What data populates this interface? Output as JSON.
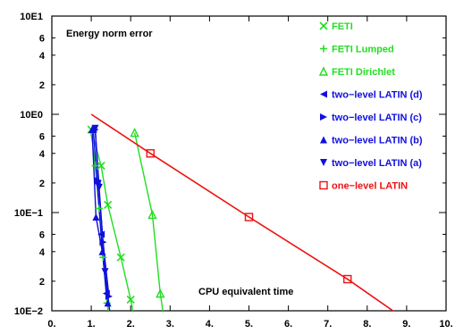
{
  "chart_data": {
    "type": "line",
    "title": "",
    "xlabel": "",
    "ylabel": "",
    "xlim": [
      0,
      10
    ],
    "ylim": [
      0.01,
      10
    ],
    "y_scale": "log",
    "grid": false,
    "legend_placement": "top-right",
    "x_ticks": [
      "0.",
      "1.",
      "2.",
      "3.",
      "4.",
      "5.",
      "6.",
      "7.",
      "8.",
      "9.",
      "10."
    ],
    "y_major_ticks": [
      {
        "value": 10,
        "label": "10E1"
      },
      {
        "value": 1,
        "label": "10E0"
      },
      {
        "value": 0.1,
        "label": "10E−1"
      },
      {
        "value": 0.01,
        "label": "10E−2"
      }
    ],
    "y_minor_ticks": [
      {
        "value": 6,
        "label": "6"
      },
      {
        "value": 4,
        "label": "4"
      },
      {
        "value": 2,
        "label": "2"
      },
      {
        "value": 0.6,
        "label": "6"
      },
      {
        "value": 0.4,
        "label": "4"
      },
      {
        "value": 0.2,
        "label": "2"
      },
      {
        "value": 0.06,
        "label": "6"
      },
      {
        "value": 0.04,
        "label": "4"
      },
      {
        "value": 0.02,
        "label": "2"
      }
    ],
    "annotations": [
      "Energy norm error",
      "CPU equivalent time"
    ],
    "series": [
      {
        "name": "FETI",
        "color": "#22dd22",
        "marker": "x",
        "x": [
          1.0,
          1.25,
          1.42,
          1.75,
          2.0,
          2.1
        ],
        "y": [
          0.7,
          0.3,
          0.12,
          0.035,
          0.013,
          0.008
        ]
      },
      {
        "name": "FETI Lumped",
        "color": "#22dd22",
        "marker": "plus",
        "x": [
          1.0,
          1.1,
          1.2,
          1.3,
          1.4,
          1.5
        ],
        "y": [
          0.65,
          0.3,
          0.11,
          0.035,
          0.012,
          0.007
        ]
      },
      {
        "name": "FETI Dirichlet",
        "color": "#22dd22",
        "marker": "triangle-up",
        "x": [
          2.1,
          2.55,
          2.75,
          2.85
        ],
        "y": [
          0.65,
          0.095,
          0.015,
          0.008
        ]
      },
      {
        "name": "two−level LATIN (d)",
        "color": "#1010dd",
        "marker": "triangle-left",
        "x": [
          1.05,
          1.15,
          1.25,
          1.38
        ],
        "y": [
          0.7,
          0.2,
          0.06,
          0.015
        ]
      },
      {
        "name": "two−level LATIN (c)",
        "color": "#1010dd",
        "marker": "triangle-right",
        "x": [
          1.1,
          1.18,
          1.3,
          1.45
        ],
        "y": [
          0.7,
          0.21,
          0.05,
          0.014
        ]
      },
      {
        "name": "two−level LATIN (b)",
        "color": "#1010dd",
        "marker": "triangle-up",
        "x": [
          1.02,
          1.12,
          1.28,
          1.42
        ],
        "y": [
          0.7,
          0.09,
          0.04,
          0.012
        ]
      },
      {
        "name": "two−level LATIN (a)",
        "color": "#1010dd",
        "marker": "triangle-down",
        "x": [
          1.1,
          1.2,
          1.35,
          1.48
        ],
        "y": [
          0.72,
          0.18,
          0.025,
          0.009
        ]
      },
      {
        "name": "one−level LATIN",
        "color": "#ee1111",
        "marker": "square",
        "x": [
          1.0,
          2.5,
          5.0,
          7.5,
          9.0
        ],
        "y": [
          1.0,
          0.4,
          0.09,
          0.021,
          0.008
        ],
        "marked_indices": [
          1,
          2,
          3
        ]
      }
    ]
  }
}
